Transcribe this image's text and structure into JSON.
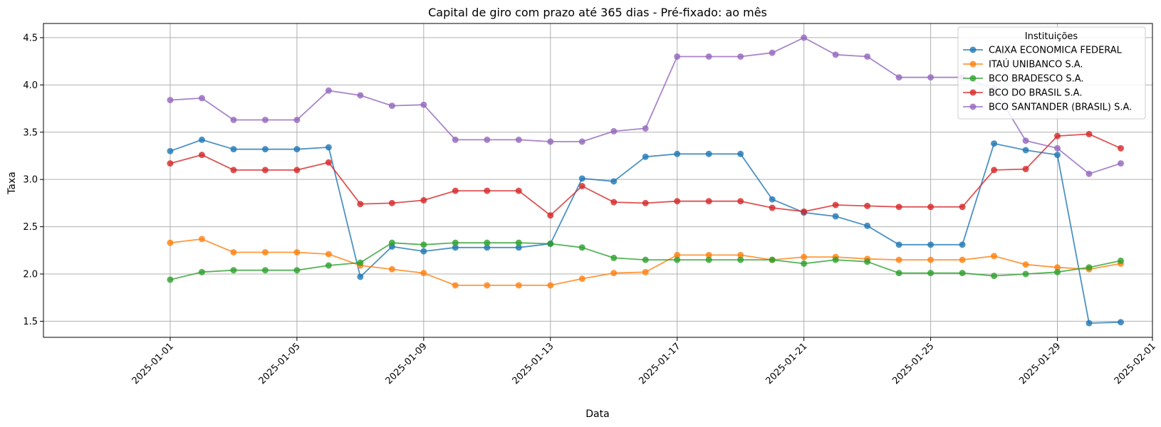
{
  "chart_data": {
    "type": "line",
    "title": "Capital de giro com prazo até 365 dias - Pré-fixado: ao mês",
    "xlabel": "Data",
    "ylabel": "Taxa",
    "xlim": [
      "2024-12-28",
      "2025-02-01"
    ],
    "ylim": [
      1.33,
      4.65
    ],
    "grid": true,
    "legend": {
      "title": "Instituições",
      "placement": "top-right"
    },
    "x_ticks": [
      "2025-01-01",
      "2025-01-05",
      "2025-01-09",
      "2025-01-13",
      "2025-01-17",
      "2025-01-21",
      "2025-01-25",
      "2025-01-29",
      "2025-02-01"
    ],
    "y_ticks": [
      "1.5",
      "2.0",
      "2.5",
      "3.0",
      "3.5",
      "4.0",
      "4.5"
    ],
    "x": [
      "2025-01-01",
      "2025-01-02",
      "2025-01-03",
      "2025-01-04",
      "2025-01-05",
      "2025-01-06",
      "2025-01-07",
      "2025-01-08",
      "2025-01-09",
      "2025-01-10",
      "2025-01-11",
      "2025-01-12",
      "2025-01-13",
      "2025-01-14",
      "2025-01-15",
      "2025-01-16",
      "2025-01-17",
      "2025-01-18",
      "2025-01-19",
      "2025-01-20",
      "2025-01-21",
      "2025-01-22",
      "2025-01-23",
      "2025-01-24",
      "2025-01-25",
      "2025-01-26",
      "2025-01-27",
      "2025-01-28",
      "2025-01-29",
      "2025-01-30",
      "2025-01-31"
    ],
    "series": [
      {
        "name": "CAIXA ECONOMICA FEDERAL",
        "color": "#1f77b4",
        "values": [
          3.3,
          3.42,
          3.32,
          3.32,
          3.32,
          3.34,
          1.97,
          2.29,
          2.24,
          2.28,
          2.28,
          2.28,
          2.32,
          3.01,
          2.98,
          3.24,
          3.27,
          3.27,
          3.27,
          2.79,
          2.65,
          2.61,
          2.51,
          2.31,
          2.31,
          2.31,
          3.38,
          3.31,
          3.26,
          1.48,
          1.49
        ]
      },
      {
        "name": "ITAÚ UNIBANCO S.A.",
        "color": "#ff7f0e",
        "values": [
          2.33,
          2.37,
          2.23,
          2.23,
          2.23,
          2.21,
          2.09,
          2.05,
          2.01,
          1.88,
          1.88,
          1.88,
          1.88,
          1.95,
          2.01,
          2.02,
          2.2,
          2.2,
          2.2,
          2.15,
          2.18,
          2.18,
          2.16,
          2.15,
          2.15,
          2.15,
          2.19,
          2.1,
          2.07,
          2.05,
          2.11
        ]
      },
      {
        "name": "BCO BRADESCO S.A.",
        "color": "#2ca02c",
        "values": [
          1.94,
          2.02,
          2.04,
          2.04,
          2.04,
          2.09,
          2.12,
          2.33,
          2.31,
          2.33,
          2.33,
          2.33,
          2.32,
          2.28,
          2.17,
          2.15,
          2.15,
          2.15,
          2.15,
          2.15,
          2.11,
          2.15,
          2.13,
          2.01,
          2.01,
          2.01,
          1.98,
          2.0,
          2.02,
          2.07,
          2.14
        ]
      },
      {
        "name": "BCO DO BRASIL S.A.",
        "color": "#d62728",
        "values": [
          3.17,
          3.26,
          3.1,
          3.1,
          3.1,
          3.18,
          2.74,
          2.75,
          2.78,
          2.88,
          2.88,
          2.88,
          2.62,
          2.93,
          2.76,
          2.75,
          2.77,
          2.77,
          2.77,
          2.7,
          2.66,
          2.73,
          2.72,
          2.71,
          2.71,
          2.71,
          3.1,
          3.11,
          3.46,
          3.48,
          3.33
        ]
      },
      {
        "name": "BCO SANTANDER (BRASIL) S.A.",
        "color": "#9467bd",
        "values": [
          3.84,
          3.86,
          3.63,
          3.63,
          3.63,
          3.94,
          3.89,
          3.78,
          3.79,
          3.42,
          3.42,
          3.42,
          3.4,
          3.4,
          3.51,
          3.54,
          4.3,
          4.3,
          4.3,
          4.34,
          4.5,
          4.32,
          4.3,
          4.08,
          4.08,
          4.08,
          3.96,
          3.41,
          3.33,
          3.06,
          3.17
        ]
      }
    ]
  }
}
